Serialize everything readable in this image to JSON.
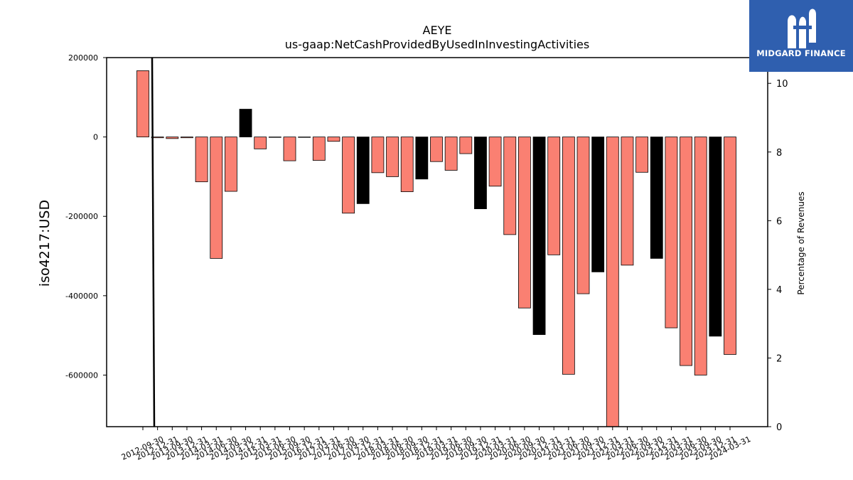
{
  "brand": {
    "name": "MIDGARD FINANCE",
    "bg": "#2f5faf"
  },
  "chart_data": {
    "type": "bar",
    "title": "AEYE",
    "subtitle": "us-gaap:NetCashProvidedByUsedInInvestingActivities",
    "ylabel": "iso4217:USD",
    "y2label": "Percentage of Revenues",
    "ylim": [
      -730000,
      200000
    ],
    "y2lim": [
      0,
      10.75
    ],
    "yticks": [
      200000,
      0,
      -200000,
      -400000,
      -600000
    ],
    "y2ticks": [
      0,
      2,
      4,
      6,
      8,
      10
    ],
    "colors": {
      "default": "#fa8072",
      "annual": "#000000"
    },
    "series": [
      {
        "name": "",
        "values": [
          167000,
          -2000,
          -4000,
          -2000,
          -113000,
          -306000,
          -137000,
          70000,
          -30000,
          -1000,
          -60000,
          -1000,
          -59000,
          -11000,
          -192000,
          -168000,
          -90000,
          -100000,
          -138000,
          -106000,
          -62000,
          -84000,
          -42000,
          -181000,
          -124000,
          -246000,
          -431000,
          -498000,
          -297000,
          -598000,
          -395000,
          -340000,
          -770000,
          -323000,
          -89000,
          -306000,
          -481000,
          -576000,
          -600000,
          -502000,
          -548000
        ]
      }
    ],
    "categories": [
      "2012-09-30",
      "2012-12-31",
      "2013-09-30",
      "2013-12-31",
      "2014-03-31",
      "2014-06-30",
      "2014-09-30",
      "2014-12-31",
      "2015-03-31",
      "2015-06-30",
      "2015-09-30",
      "2016-12-31",
      "2017-03-31",
      "2017-06-30",
      "2017-09-30",
      "2017-12-31",
      "2018-03-31",
      "2018-06-30",
      "2018-09-30",
      "2018-12-31",
      "2019-03-31",
      "2019-06-30",
      "2019-09-30",
      "2019-12-31",
      "2020-03-31",
      "2020-06-30",
      "2020-09-30",
      "2020-12-31",
      "2021-03-31",
      "2021-06-30",
      "2021-09-30",
      "2021-12-31",
      "2022-03-31",
      "2022-06-30",
      "2022-09-30",
      "2022-12-31",
      "2023-03-31",
      "2023-06-30",
      "2023-09-30",
      "2023-12-31",
      "2024-03-31"
    ],
    "annual_flags": [
      false,
      false,
      false,
      false,
      false,
      false,
      false,
      true,
      false,
      false,
      false,
      true,
      false,
      false,
      false,
      true,
      false,
      false,
      false,
      true,
      false,
      false,
      false,
      true,
      false,
      false,
      false,
      true,
      false,
      false,
      false,
      true,
      false,
      false,
      false,
      true,
      false,
      false,
      false,
      true,
      false
    ]
  }
}
